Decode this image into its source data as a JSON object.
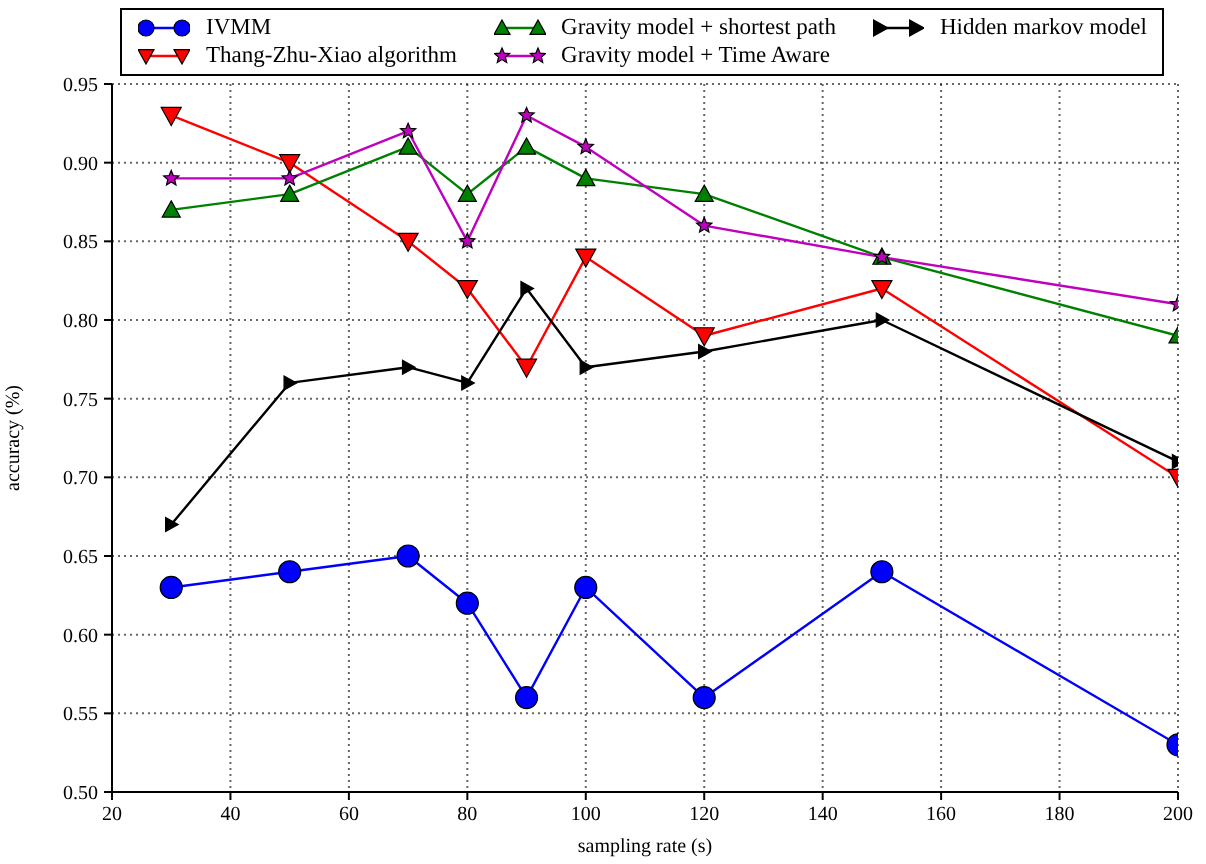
{
  "chart_data": {
    "type": "line",
    "xlabel": "sampling rate (s)",
    "ylabel": "accuracy (%)",
    "x": [
      30,
      50,
      70,
      80,
      90,
      100,
      120,
      150,
      200
    ],
    "series": [
      {
        "name": "IVMM",
        "color": "#0000ff",
        "marker": "circle",
        "values": [
          0.63,
          0.64,
          0.65,
          0.62,
          0.56,
          0.63,
          0.56,
          0.64,
          0.53
        ]
      },
      {
        "name": "Thang-Zhu-Xiao algorithm",
        "color": "#ff0000",
        "marker": "triangle_down",
        "values": [
          0.93,
          0.9,
          0.85,
          0.82,
          0.77,
          0.84,
          0.79,
          0.82,
          0.7
        ]
      },
      {
        "name": "Gravity model + shortest path",
        "color": "#008000",
        "marker": "triangle",
        "values": [
          0.87,
          0.88,
          0.91,
          0.88,
          0.91,
          0.89,
          0.88,
          0.84,
          0.79
        ]
      },
      {
        "name": "Gravity model + Time Aware",
        "color": "#bf00bf",
        "marker": "star",
        "values": [
          0.89,
          0.89,
          0.92,
          0.85,
          0.93,
          0.91,
          0.86,
          0.84,
          0.81
        ]
      },
      {
        "name": "Hidden markov model",
        "color": "#000000",
        "marker": "triangle_right",
        "values": [
          0.67,
          0.76,
          0.77,
          0.76,
          0.82,
          0.77,
          0.78,
          0.8,
          0.71
        ]
      }
    ],
    "xlim": [
      20,
      200
    ],
    "xticks": [
      20,
      40,
      60,
      80,
      100,
      120,
      140,
      160,
      180,
      200
    ],
    "ylim": [
      0.5,
      0.95
    ],
    "yticks": [
      {
        "value": 0.5,
        "label": "0.50"
      },
      {
        "value": 0.55,
        "label": "0.55"
      },
      {
        "value": 0.6,
        "label": "0.60"
      },
      {
        "value": 0.65,
        "label": "0.65"
      },
      {
        "value": 0.7,
        "label": "0.70"
      },
      {
        "value": 0.75,
        "label": "0.75"
      },
      {
        "value": 0.8,
        "label": "0.80"
      },
      {
        "value": 0.85,
        "label": "0.85"
      },
      {
        "value": 0.9,
        "label": "0.90"
      },
      {
        "value": 0.95,
        "label": "0.95"
      }
    ],
    "grid": true,
    "legend": "top",
    "line_style": "solid"
  }
}
